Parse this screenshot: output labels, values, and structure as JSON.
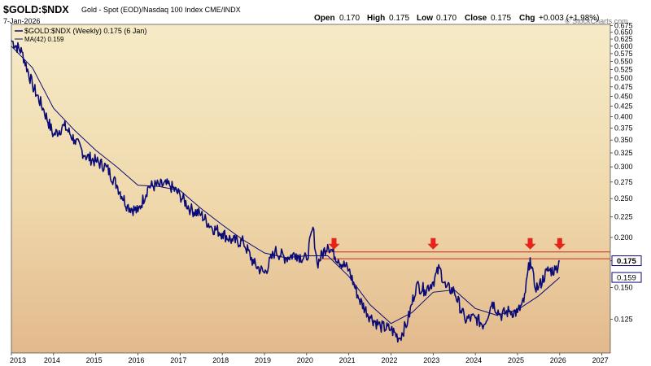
{
  "header": {
    "symbol": "$GOLD:$NDX",
    "description": "Gold - Spot (EOD)/Nasdaq 100 Index  CME/INDX",
    "date": "7-Jan-2026",
    "open_label": "Open",
    "open_value": "0.170",
    "high_label": "High",
    "high_value": "0.175",
    "low_label": "Low",
    "low_value": "0.170",
    "close_label": "Close",
    "close_value": "0.175",
    "chg_label": "Chg",
    "chg_value": "+0.003 (+1.98%)",
    "watermark": "© StockCharts.com"
  },
  "legend": {
    "series_label": "$GOLD:$NDX (Weekly) 0.175 (6 Jan)",
    "ma_label": "MA(42) 0.159"
  },
  "colors": {
    "background_top": "#f6ebc7",
    "background_bottom": "#e2b98c",
    "price_line": "#0b0b78",
    "ma_line": "#0b0b78",
    "resistance": "#cc2a1a",
    "arrow": "#e8231a",
    "price_tag_bg": "#ffffff"
  },
  "chart_data": {
    "type": "line",
    "title": "$GOLD:$NDX Gold - Spot (EOD)/Nasdaq 100 Index",
    "scale": "log",
    "xlabel": "",
    "ylabel": "",
    "xlim": [
      2013.0,
      2027.2
    ],
    "ylim": [
      0.103,
      0.68
    ],
    "x_ticks": [
      "2013",
      "2014",
      "2015",
      "2016",
      "2017",
      "2018",
      "2019",
      "2020",
      "2021",
      "2022",
      "2023",
      "2024",
      "2025",
      "2026",
      "2027"
    ],
    "y_ticks": [
      "0.675",
      "0.650",
      "0.625",
      "0.600",
      "0.575",
      "0.550",
      "0.525",
      "0.500",
      "0.475",
      "0.450",
      "0.425",
      "0.400",
      "0.375",
      "0.350",
      "0.325",
      "0.300",
      "0.275",
      "0.250",
      "0.225",
      "0.200",
      "0.175",
      "0.150",
      "0.125"
    ],
    "grid": false,
    "legend": "top-left",
    "last_price_tag": "0.175",
    "ma_price_tag": "0.159",
    "series": [
      {
        "name": "$GOLD:$NDX (Weekly)",
        "x": [
          2013.0,
          2013.25,
          2013.5,
          2013.75,
          2014.0,
          2014.25,
          2014.5,
          2014.75,
          2015.0,
          2015.25,
          2015.5,
          2015.75,
          2016.0,
          2016.25,
          2016.5,
          2016.75,
          2017.0,
          2017.25,
          2017.5,
          2017.75,
          2018.0,
          2018.25,
          2018.5,
          2018.75,
          2019.0,
          2019.25,
          2019.5,
          2019.75,
          2020.0,
          2020.15,
          2020.25,
          2020.5,
          2020.75,
          2021.0,
          2021.25,
          2021.5,
          2021.75,
          2022.0,
          2022.2,
          2022.4,
          2022.6,
          2022.8,
          2023.0,
          2023.15,
          2023.3,
          2023.5,
          2023.75,
          2024.0,
          2024.2,
          2024.4,
          2024.6,
          2024.8,
          2025.0,
          2025.15,
          2025.3,
          2025.4,
          2025.5,
          2025.7,
          2025.9,
          2026.0
        ],
        "values": [
          0.62,
          0.58,
          0.48,
          0.42,
          0.36,
          0.38,
          0.35,
          0.32,
          0.31,
          0.3,
          0.27,
          0.24,
          0.232,
          0.268,
          0.27,
          0.27,
          0.255,
          0.235,
          0.228,
          0.212,
          0.205,
          0.196,
          0.195,
          0.172,
          0.163,
          0.185,
          0.178,
          0.182,
          0.176,
          0.212,
          0.172,
          0.192,
          0.176,
          0.166,
          0.14,
          0.127,
          0.12,
          0.118,
          0.112,
          0.124,
          0.152,
          0.148,
          0.155,
          0.168,
          0.15,
          0.147,
          0.125,
          0.126,
          0.121,
          0.138,
          0.128,
          0.131,
          0.13,
          0.138,
          0.178,
          0.152,
          0.15,
          0.165,
          0.166,
          0.175
        ]
      },
      {
        "name": "MA(42)",
        "x": [
          2013.0,
          2013.5,
          2014.0,
          2014.5,
          2015.0,
          2015.5,
          2016.0,
          2016.5,
          2017.0,
          2017.5,
          2018.0,
          2018.5,
          2019.0,
          2019.5,
          2020.0,
          2020.5,
          2021.0,
          2021.5,
          2022.0,
          2022.5,
          2023.0,
          2023.5,
          2024.0,
          2024.5,
          2025.0,
          2025.5,
          2026.0
        ],
        "values": [
          0.6,
          0.53,
          0.42,
          0.37,
          0.33,
          0.3,
          0.27,
          0.268,
          0.262,
          0.236,
          0.215,
          0.197,
          0.183,
          0.178,
          0.18,
          0.18,
          0.16,
          0.136,
          0.122,
          0.13,
          0.146,
          0.148,
          0.133,
          0.128,
          0.132,
          0.143,
          0.159
        ]
      }
    ],
    "resistance_levels": [
      0.177,
      0.184
    ],
    "annotations": [
      {
        "type": "down-arrow",
        "x": 2020.65
      },
      {
        "type": "down-arrow",
        "x": 2023.0
      },
      {
        "type": "down-arrow",
        "x": 2025.3
      },
      {
        "type": "down-arrow",
        "x": 2026.0
      }
    ]
  }
}
